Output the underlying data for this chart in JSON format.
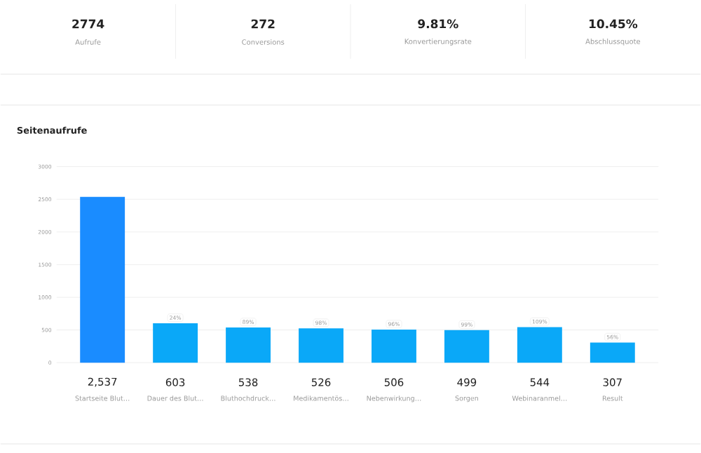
{
  "chart_data": [
    {
      "type": "other",
      "annotations": [
        "2774",
        "Aufrufe",
        "272",
        "Conversions",
        "9.81%",
        "Konvertierungsrate",
        "10.45%",
        "Abschlussquote"
      ]
    },
    {
      "type": "bar",
      "title": "Seitenaufrufe",
      "categories": [
        "Startseite Blut…",
        "Dauer des Blut…",
        "Bluthochdruck…",
        "Medikamentös…",
        "Nebenwirkung…",
        "Sorgen",
        "Webinaranmel…",
        "Result"
      ],
      "values": [
        2537,
        603,
        538,
        526,
        506,
        499,
        544,
        307
      ],
      "value_labels": [
        "2,537",
        "603",
        "538",
        "526",
        "506",
        "499",
        "544",
        "307"
      ],
      "colors": [
        "#1a8cff",
        "#0aa8f8",
        "#0aa8f8",
        "#0aa8f8",
        "#0aa8f8",
        "#0aa8f8",
        "#0aa8f8",
        "#0aa8f8"
      ],
      "annotations": [
        {
          "text": "24%",
          "x": "Dauer des Blut…",
          "y": 603
        },
        {
          "text": "89%",
          "x": "Bluthochdruck…",
          "y": 538
        },
        {
          "text": "98%",
          "x": "Medikamentös…",
          "y": 526
        },
        {
          "text": "96%",
          "x": "Nebenwirkung…",
          "y": 506
        },
        {
          "text": "99%",
          "x": "Sorgen",
          "y": 499
        },
        {
          "text": "109%",
          "x": "Webinaranmel…",
          "y": 544
        },
        {
          "text": "56%",
          "x": "Result",
          "y": 307
        }
      ],
      "ylim": [
        0,
        3000
      ],
      "yticks": [
        0,
        500,
        1000,
        1500,
        2000,
        2500,
        3000
      ],
      "grid": "y"
    }
  ]
}
